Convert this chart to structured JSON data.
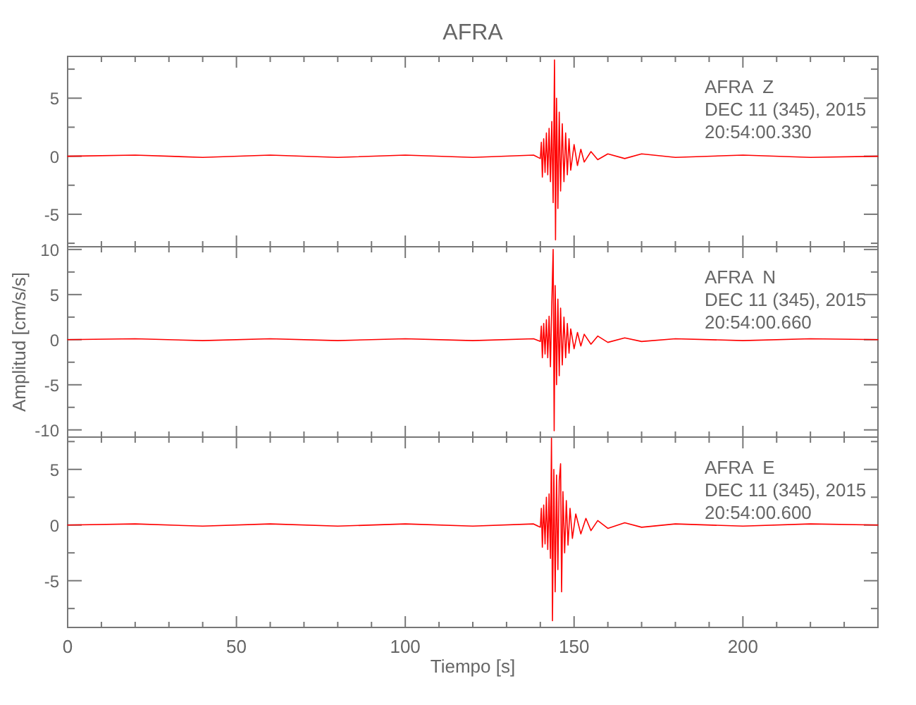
{
  "chart_data": [
    {
      "type": "line",
      "title": "AFRA",
      "tick_labels": "y",
      "x": [
        0,
        20,
        40,
        60,
        80,
        100,
        120,
        138,
        140,
        140.3,
        140.6,
        141,
        141.4,
        141.8,
        142.2,
        142.6,
        143,
        143.4,
        143.8,
        144.2,
        144.5,
        144.8,
        145.2,
        145.6,
        146,
        146.5,
        147,
        147.5,
        148,
        148.5,
        149,
        150,
        151,
        152,
        153,
        155,
        157,
        160,
        165,
        170,
        180,
        200,
        220,
        240
      ],
      "series": [
        {
          "color": "#ff0000",
          "values": [
            0,
            0.1,
            -0.1,
            0.1,
            -0.1,
            0.1,
            -0.1,
            0.1,
            -0.2,
            1.2,
            -1.8,
            1.5,
            -1.4,
            2.0,
            -1.6,
            2.4,
            -2.2,
            3.0,
            -4.0,
            8.3,
            -7.2,
            5.0,
            -4.5,
            3.8,
            -3.0,
            2.8,
            -2.2,
            2.0,
            -1.6,
            1.5,
            -1.2,
            1.0,
            -0.8,
            0.6,
            -0.5,
            0.4,
            -0.3,
            0.2,
            -0.2,
            0.2,
            -0.1,
            0.1,
            -0.1,
            0
          ]
        }
      ],
      "xlim": [
        0,
        240
      ],
      "xticks": [
        0,
        {
          "value": 10,
          "label": null
        },
        {
          "value": 20,
          "label": null
        },
        {
          "value": 30,
          "label": null
        },
        {
          "value": 40,
          "label": null
        },
        50,
        {
          "value": 60,
          "label": null
        },
        {
          "value": 70,
          "label": null
        },
        {
          "value": 80,
          "label": null
        },
        {
          "value": 90,
          "label": null
        },
        100,
        {
          "value": 110,
          "label": null
        },
        {
          "value": 120,
          "label": null
        },
        {
          "value": 130,
          "label": null
        },
        {
          "value": 140,
          "label": null
        },
        150,
        {
          "value": 160,
          "label": null
        },
        {
          "value": 170,
          "label": null
        },
        {
          "value": 180,
          "label": null
        },
        {
          "value": 190,
          "label": null
        },
        200,
        {
          "value": 210,
          "label": null
        },
        {
          "value": 220,
          "label": null
        },
        {
          "value": 230,
          "label": null
        }
      ],
      "ylim": [
        -7.8,
        8.6
      ],
      "yticks": [
        {
          "value": -7.5,
          "label": null
        },
        -5,
        {
          "value": -2.5,
          "label": null
        },
        0,
        {
          "value": 2.5,
          "label": null
        },
        5,
        {
          "value": 7.5,
          "label": null
        }
      ],
      "annotations": [
        "AFRA  Z",
        "DEC 11 (345), 2015",
        "20:54:00.330"
      ]
    },
    {
      "type": "line",
      "ylabel": "Amplitud [cm/s/s]",
      "tick_labels": "y",
      "x": [
        0,
        20,
        40,
        60,
        80,
        100,
        120,
        138,
        140,
        140.3,
        140.6,
        141,
        141.4,
        141.8,
        142.2,
        142.6,
        143,
        143.4,
        143.8,
        144.1,
        144.4,
        144.8,
        145.2,
        145.6,
        146,
        146.5,
        147,
        147.5,
        148,
        148.5,
        149,
        150,
        151,
        152,
        153,
        155,
        157,
        160,
        165,
        170,
        180,
        200,
        220,
        240
      ],
      "series": [
        {
          "color": "#ff0000",
          "values": [
            0,
            0.1,
            -0.1,
            0.1,
            -0.1,
            0.1,
            -0.1,
            0.1,
            -0.2,
            1.5,
            -2.0,
            1.8,
            -1.6,
            2.2,
            -2.0,
            2.6,
            -3.0,
            4.0,
            10.0,
            -10.1,
            6.0,
            -5.0,
            4.5,
            -4.0,
            3.5,
            -2.8,
            2.5,
            -2.0,
            1.8,
            -1.5,
            1.2,
            -1.0,
            0.8,
            -0.7,
            0.6,
            -0.5,
            0.4,
            -0.3,
            0.2,
            -0.2,
            0.1,
            -0.1,
            0.1,
            0
          ]
        }
      ],
      "xlim": [
        0,
        240
      ],
      "xticks": [
        0,
        {
          "value": 10,
          "label": null
        },
        {
          "value": 20,
          "label": null
        },
        {
          "value": 30,
          "label": null
        },
        {
          "value": 40,
          "label": null
        },
        50,
        {
          "value": 60,
          "label": null
        },
        {
          "value": 70,
          "label": null
        },
        {
          "value": 80,
          "label": null
        },
        {
          "value": 90,
          "label": null
        },
        100,
        {
          "value": 110,
          "label": null
        },
        {
          "value": 120,
          "label": null
        },
        {
          "value": 130,
          "label": null
        },
        {
          "value": 140,
          "label": null
        },
        150,
        {
          "value": 160,
          "label": null
        },
        {
          "value": 170,
          "label": null
        },
        {
          "value": 180,
          "label": null
        },
        {
          "value": 190,
          "label": null
        },
        200,
        {
          "value": 210,
          "label": null
        },
        {
          "value": 220,
          "label": null
        },
        {
          "value": 230,
          "label": null
        }
      ],
      "ylim": [
        -10.8,
        10.3
      ],
      "yticks": [
        -10,
        {
          "value": -7.5,
          "label": null
        },
        -5,
        {
          "value": -2.5,
          "label": null
        },
        0,
        {
          "value": 2.5,
          "label": null
        },
        5,
        {
          "value": 7.5,
          "label": null
        },
        10
      ],
      "annotations": [
        "AFRA  N",
        "DEC 11 (345), 2015",
        "20:54:00.660"
      ]
    },
    {
      "type": "line",
      "xlabel": "Tiempo [s]",
      "x": [
        0,
        20,
        40,
        60,
        80,
        100,
        120,
        138,
        140,
        140.3,
        140.6,
        141,
        141.4,
        141.8,
        142.2,
        142.6,
        143,
        143.3,
        143.6,
        144,
        144.4,
        144.8,
        145.2,
        145.6,
        146,
        146.3,
        146.7,
        147.2,
        147.7,
        148.2,
        148.8,
        149.5,
        150.5,
        152,
        153.5,
        155,
        157,
        160,
        165,
        170,
        180,
        200,
        220,
        240
      ],
      "series": [
        {
          "color": "#ff0000",
          "values": [
            0,
            0.1,
            -0.1,
            0.1,
            -0.1,
            0.1,
            -0.1,
            0.1,
            -0.2,
            1.5,
            -2.0,
            1.8,
            -1.7,
            2.5,
            -2.2,
            2.8,
            -3.0,
            7.8,
            -8.6,
            5.0,
            -6.0,
            4.5,
            -4.0,
            4.0,
            5.5,
            -6.0,
            3.0,
            -2.5,
            2.2,
            -1.8,
            1.5,
            -1.2,
            1.0,
            -0.8,
            0.6,
            -0.5,
            0.4,
            -0.3,
            0.2,
            -0.2,
            0.1,
            -0.1,
            0.1,
            0
          ]
        }
      ],
      "xlim": [
        0,
        240
      ],
      "xticks": [
        0,
        {
          "value": 10,
          "label": null
        },
        {
          "value": 20,
          "label": null
        },
        {
          "value": 30,
          "label": null
        },
        {
          "value": 40,
          "label": null
        },
        50,
        {
          "value": 60,
          "label": null
        },
        {
          "value": 70,
          "label": null
        },
        {
          "value": 80,
          "label": null
        },
        {
          "value": 90,
          "label": null
        },
        100,
        {
          "value": 110,
          "label": null
        },
        {
          "value": 120,
          "label": null
        },
        {
          "value": 130,
          "label": null
        },
        {
          "value": 140,
          "label": null
        },
        150,
        {
          "value": 160,
          "label": null
        },
        {
          "value": 170,
          "label": null
        },
        {
          "value": 180,
          "label": null
        },
        {
          "value": 190,
          "label": null
        },
        200,
        {
          "value": 210,
          "label": null
        },
        {
          "value": 220,
          "label": null
        },
        {
          "value": 230,
          "label": null
        }
      ],
      "ylim": [
        -9.2,
        7.9
      ],
      "yticks": [
        {
          "value": -7.5,
          "label": null
        },
        -5,
        {
          "value": -2.5,
          "label": null
        },
        0,
        {
          "value": 2.5,
          "label": null
        },
        5,
        {
          "value": 7.5,
          "label": null
        }
      ],
      "annotations": [
        "AFRA  E",
        "DEC 11 (345), 2015",
        "20:54:00.600"
      ]
    }
  ]
}
